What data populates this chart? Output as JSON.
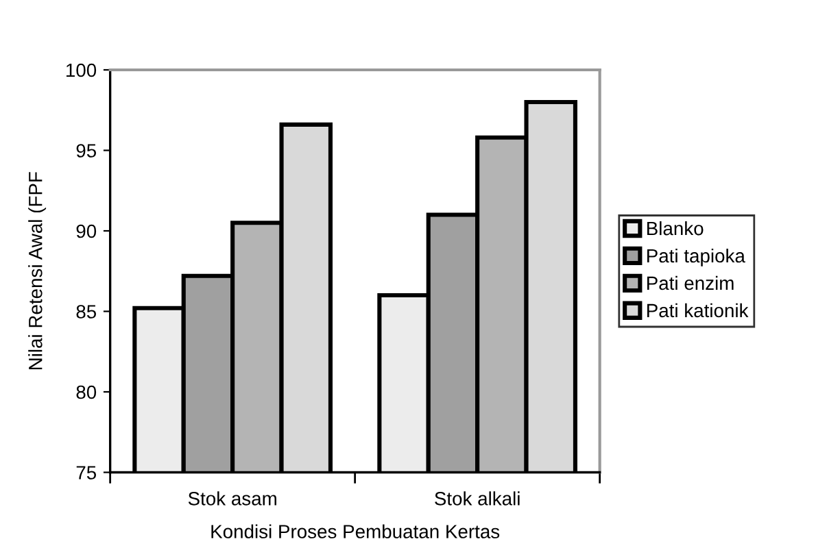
{
  "chart_data": {
    "type": "bar",
    "xlabel": "Kondisi Proses Pembuatan Kertas",
    "ylabel": "Nilai Retensi Awal (FPF",
    "categories": [
      "Stok asam",
      "Stok alkali"
    ],
    "series": [
      {
        "name": "Blanko",
        "color": "#ececec",
        "values": [
          85.2,
          86.0
        ]
      },
      {
        "name": "Pati tapioka",
        "color": "#a0a0a0",
        "values": [
          87.2,
          91.0
        ]
      },
      {
        "name": "Pati enzim",
        "color": "#b4b4b4",
        "values": [
          90.5,
          95.8
        ]
      },
      {
        "name": "Pati kationik",
        "color": "#d9d9d9",
        "values": [
          96.6,
          98.0
        ]
      }
    ],
    "ylim": [
      75,
      100
    ],
    "yticks": [
      75,
      80,
      85,
      90,
      95,
      100
    ],
    "grid": false,
    "legend": "right"
  }
}
